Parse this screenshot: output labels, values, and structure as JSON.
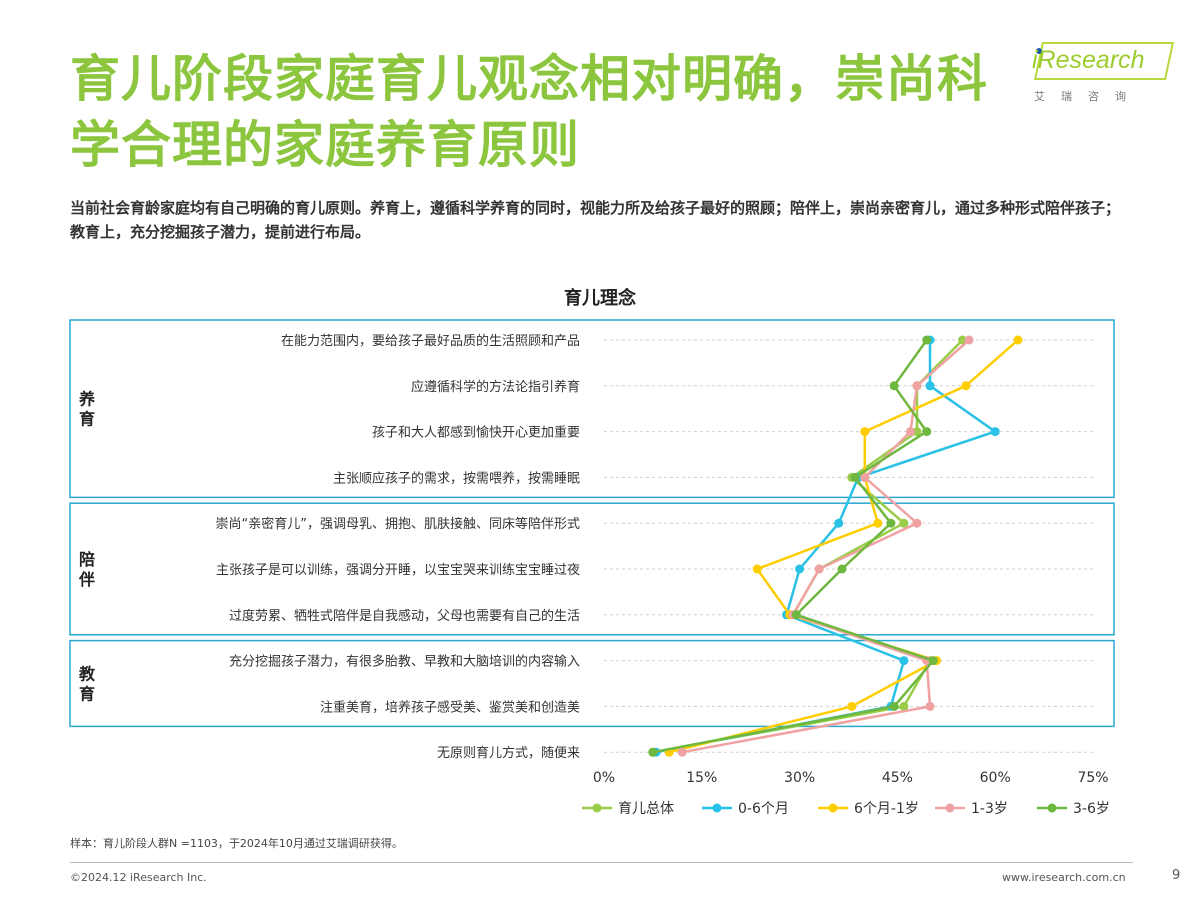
{
  "header": {
    "title": "育儿阶段家庭育儿观念相对明确，崇尚科学合理的家庭养育原则",
    "subtitle": "当前社会育龄家庭均有自己明确的育儿原则。养育上，遵循科学养育的同时，视能力所及给孩子最好的照顾；陪伴上，崇尚亲密育儿，通过多种形式陪伴孩子；教育上，充分挖掘孩子潜力，提前进行布局。"
  },
  "logo": {
    "word": "iResearch",
    "sub": "艾瑞咨询"
  },
  "chart_data": {
    "type": "line",
    "orientation": "horizontal",
    "title": "育儿理念",
    "categories": [
      "在能力范围内，要给孩子最好品质的生活照顾和产品",
      "应遵循科学的方法论指引养育",
      "孩子和大人都感到愉快开心更加重要",
      "主张顺应孩子的需求，按需喂养，按需睡眠",
      "崇尚“亲密育儿”，强调母乳、拥抱、肌肤接触、同床等陪伴形式",
      "主张孩子是可以训练，强调分开睡，以宝宝哭来训练宝宝睡过夜",
      "过度劳累、牺牲式陪伴是自我感动，父母也需要有自己的生活",
      "充分挖掘孩子潜力，有很多胎教、早教和大脑培训的内容输入",
      "注重美育，培养孩子感受美、鉴赏美和创造美",
      "无原则育儿方式，随便来"
    ],
    "groups": [
      {
        "label": "养育",
        "range": [
          0,
          3
        ]
      },
      {
        "label": "陪伴",
        "range": [
          4,
          6
        ]
      },
      {
        "label": "教育",
        "range": [
          7,
          8
        ]
      }
    ],
    "x_ticks": [
      "0%",
      "15%",
      "30%",
      "45%",
      "60%",
      "75%"
    ],
    "xlim": [
      0,
      75
    ],
    "grid": true,
    "legend_position": "bottom",
    "series": [
      {
        "name": "育儿总体",
        "color": "#9acd47",
        "values": [
          55,
          48,
          48,
          38,
          46,
          33,
          29,
          50,
          46,
          7.5
        ]
      },
      {
        "name": "0-6个月",
        "color": "#29c1e6",
        "values": [
          50,
          50,
          60,
          39,
          36,
          30,
          28,
          46,
          44,
          8
        ]
      },
      {
        "name": "6个月-1岁",
        "color": "#ffcd00",
        "values": [
          63.5,
          55.5,
          40,
          40,
          42,
          23.5,
          28.5,
          51,
          38,
          10
        ]
      },
      {
        "name": "1-3岁",
        "color": "#f0a2a2",
        "values": [
          56,
          48,
          47,
          40,
          48,
          33,
          29,
          49.5,
          50,
          12
        ]
      },
      {
        "name": "3-6岁",
        "color": "#6fb83f",
        "values": [
          49.5,
          44.5,
          49.5,
          38.5,
          44,
          36.5,
          29.5,
          50.5,
          44.5,
          7.5
        ]
      }
    ]
  },
  "footer": {
    "sample": "样本：育儿阶段人群N =1103，于2024年10月通过艾瑞调研获得。",
    "copyright": "©2024.12 iResearch Inc.",
    "website": "www.iresearch.com.cn",
    "page": "9"
  }
}
